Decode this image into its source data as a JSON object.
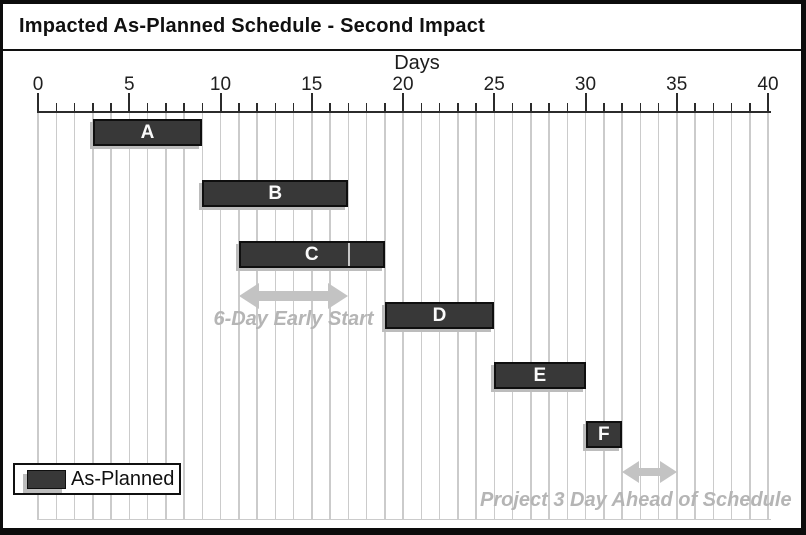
{
  "title": "Impacted As-Planned Schedule - Second Impact",
  "axis": {
    "label": "Days",
    "tick_labels": [
      "0",
      "5",
      "10",
      "15",
      "20",
      "25",
      "30",
      "35",
      "40"
    ]
  },
  "legend": {
    "label": "As-Planned"
  },
  "chart_data": {
    "type": "bar",
    "subtype": "gantt",
    "title": "Impacted As-Planned Schedule - Second Impact",
    "xlabel": "Days",
    "xlim": [
      0,
      40
    ],
    "x_major_ticks": [
      0,
      5,
      10,
      15,
      20,
      25,
      30,
      35,
      40
    ],
    "x_minor_step": 1,
    "grid": "vertical-every-day",
    "tasks": [
      {
        "name": "A",
        "start": 3,
        "end": 9
      },
      {
        "name": "B",
        "start": 9,
        "end": 17
      },
      {
        "name": "C",
        "start": 11,
        "end": 19,
        "divider_at": 17
      },
      {
        "name": "D",
        "start": 19,
        "end": 25
      },
      {
        "name": "E",
        "start": 25,
        "end": 30
      },
      {
        "name": "F",
        "start": 30,
        "end": 32
      }
    ],
    "annotations": [
      {
        "type": "double_arrow",
        "from_day": 11,
        "to_day": 17,
        "label": "6-Day Early Start"
      },
      {
        "type": "double_arrow",
        "from_day": 32,
        "to_day": 35,
        "label": "Project 3 Day Ahead of Schedule"
      }
    ],
    "legend_entries": [
      {
        "label": "As-Planned",
        "swatch": "dark-bar"
      }
    ],
    "colors": {
      "bar_fill": "#383838",
      "bar_border": "#0f0f0f",
      "bar_text": "#fafafa",
      "grid": "#cbcbcb",
      "axis": "#2b2b2b",
      "annotation_arrow": "#c3c3c3",
      "annotation_text": "#b5b5b5",
      "shadow": "#bcbcbc"
    }
  }
}
